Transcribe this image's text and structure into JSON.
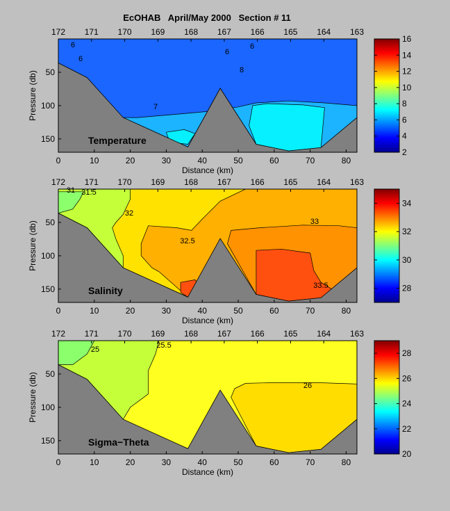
{
  "figure_title": "EcOHAB   April/May 2000   Section # 11",
  "chart_data": [
    {
      "type": "heatmap",
      "panel_label": "Temperature",
      "xlabel": "Distance (km)",
      "ylabel": "Pressure (db)",
      "xticks": [
        0,
        10,
        20,
        30,
        40,
        50,
        60,
        70,
        80
      ],
      "yticks": [
        50,
        100,
        150
      ],
      "station_ticks": [
        172,
        171,
        170,
        169,
        168,
        167,
        166,
        165,
        164,
        163
      ],
      "colorbar_ticks": [
        2,
        4,
        6,
        8,
        10,
        12,
        14,
        16
      ],
      "colorbar_range": [
        2,
        16
      ],
      "contour_labels": [
        "6",
        "6",
        "6",
        "6",
        "8",
        "7"
      ],
      "xlim": [
        0,
        83
      ],
      "ylim": [
        170,
        0
      ],
      "bottom_profile": [
        [
          0,
          36
        ],
        [
          8,
          58
        ],
        [
          18,
          118
        ],
        [
          36,
          162
        ],
        [
          45,
          74
        ],
        [
          55,
          158
        ],
        [
          64,
          168
        ],
        [
          73,
          163
        ],
        [
          83,
          118
        ]
      ],
      "fields": [
        {
          "value": 5.7,
          "color": "#1a66ff",
          "outline": [
            [
              0,
              0
            ],
            [
              83,
              0
            ],
            [
              83,
              118
            ],
            [
              73,
              163
            ],
            [
              64,
              168
            ],
            [
              55,
              158
            ],
            [
              45,
              74
            ],
            [
              36,
              162
            ],
            [
              18,
              118
            ],
            [
              8,
              58
            ],
            [
              0,
              36
            ]
          ]
        },
        {
          "value": 7.0,
          "color": "#1cb4ff",
          "outline": [
            [
              22,
              118
            ],
            [
              35,
              112
            ],
            [
              43,
              108
            ],
            [
              50,
              102
            ],
            [
              55,
              96
            ],
            [
              64,
              93
            ],
            [
              74,
              96
            ],
            [
              83,
              100
            ],
            [
              83,
              118
            ],
            [
              73,
              163
            ],
            [
              64,
              168
            ],
            [
              55,
              158
            ],
            [
              45,
              74
            ],
            [
              36,
              162
            ],
            [
              18,
              118
            ]
          ]
        },
        {
          "value": 7.4,
          "color": "#06f0ff",
          "outline": [
            [
              54,
              100
            ],
            [
              58,
              97
            ],
            [
              68,
              99
            ],
            [
              74,
              103
            ],
            [
              73,
              163
            ],
            [
              64,
              168
            ],
            [
              55,
              158
            ],
            [
              53,
              130
            ]
          ]
        },
        {
          "value": 7.4,
          "color": "#06f0ff",
          "outline": [
            [
              30,
              140
            ],
            [
              35,
              136
            ],
            [
              38,
              142
            ],
            [
              36,
              158
            ],
            [
              31,
              155
            ]
          ]
        }
      ]
    },
    {
      "type": "heatmap",
      "panel_label": "Salinity",
      "xlabel": "Distance (km)",
      "ylabel": "Pressure (db)",
      "xticks": [
        0,
        10,
        20,
        30,
        40,
        50,
        60,
        70,
        80
      ],
      "yticks": [
        50,
        100,
        150
      ],
      "station_ticks": [
        172,
        171,
        170,
        169,
        168,
        167,
        166,
        165,
        164,
        163
      ],
      "colorbar_ticks": [
        28,
        30,
        32,
        34
      ],
      "colorbar_range": [
        27,
        35
      ],
      "contour_labels": [
        "31",
        "31.5",
        "32",
        "32.5",
        "33",
        "33.5"
      ],
      "xlim": [
        0,
        83
      ],
      "ylim": [
        170,
        0
      ],
      "bottom_profile": [
        [
          0,
          36
        ],
        [
          8,
          58
        ],
        [
          18,
          118
        ],
        [
          36,
          162
        ],
        [
          45,
          74
        ],
        [
          55,
          158
        ],
        [
          64,
          168
        ],
        [
          73,
          163
        ],
        [
          83,
          118
        ]
      ],
      "fields": [
        {
          "value": 32.5,
          "color": "#ffb000",
          "outline": [
            [
              0,
              0
            ],
            [
              83,
              0
            ],
            [
              83,
              118
            ],
            [
              73,
              163
            ],
            [
              64,
              168
            ],
            [
              55,
              158
            ],
            [
              45,
              74
            ],
            [
              36,
              162
            ],
            [
              18,
              118
            ],
            [
              8,
              58
            ],
            [
              0,
              36
            ]
          ]
        },
        {
          "value": 32.0,
          "color": "#ffe200",
          "outline": [
            [
              0,
              0
            ],
            [
              52,
              0
            ],
            [
              45,
              18
            ],
            [
              40,
              45
            ],
            [
              37,
              62
            ],
            [
              33,
              58
            ],
            [
              25,
              55
            ],
            [
              23,
              82
            ],
            [
              23,
              100
            ],
            [
              26,
              118
            ],
            [
              28,
              124
            ],
            [
              36,
              162
            ],
            [
              18,
              118
            ],
            [
              8,
              58
            ],
            [
              0,
              36
            ]
          ]
        },
        {
          "value": 31.5,
          "color": "#c4ff3a",
          "outline": [
            [
              0,
              0
            ],
            [
              20,
              0
            ],
            [
              20,
              15
            ],
            [
              18,
              38
            ],
            [
              16,
              50
            ],
            [
              15,
              58
            ],
            [
              16,
              75
            ],
            [
              18,
              100
            ],
            [
              18,
              118
            ],
            [
              8,
              58
            ],
            [
              0,
              36
            ]
          ]
        },
        {
          "value": 31.0,
          "color": "#8cff6c",
          "outline": [
            [
              0,
              4
            ],
            [
              7,
              4
            ],
            [
              6,
              15
            ],
            [
              4,
              30
            ],
            [
              0,
              36
            ]
          ]
        },
        {
          "value": 33.0,
          "color": "#ff9200",
          "outline": [
            [
              48,
              62
            ],
            [
              56,
              58
            ],
            [
              68,
              54
            ],
            [
              78,
              55
            ],
            [
              83,
              58
            ],
            [
              83,
              118
            ],
            [
              73,
              163
            ],
            [
              64,
              168
            ],
            [
              55,
              158
            ],
            [
              47,
              82
            ]
          ]
        },
        {
          "value": 33.5,
          "color": "#ff5010",
          "outline": [
            [
              55,
              92
            ],
            [
              62,
              90
            ],
            [
              70,
              96
            ],
            [
              71,
              122
            ],
            [
              73,
              140
            ],
            [
              76,
              150
            ],
            [
              73,
              163
            ],
            [
              64,
              168
            ],
            [
              55,
              158
            ]
          ]
        },
        {
          "value": 33.5,
          "color": "#ff5010",
          "outline": [
            [
              34,
              140
            ],
            [
              38,
              136
            ],
            [
              40,
              150
            ],
            [
              36,
              162
            ],
            [
              34,
              155
            ]
          ]
        }
      ]
    },
    {
      "type": "heatmap",
      "panel_label": "Sigma−Theta",
      "xlabel": "Distance (km)",
      "ylabel": "Pressure (db)",
      "xticks": [
        0,
        10,
        20,
        30,
        40,
        50,
        60,
        70,
        80
      ],
      "yticks": [
        50,
        100,
        150
      ],
      "station_ticks": [
        172,
        171,
        170,
        169,
        168,
        167,
        166,
        165,
        164,
        163
      ],
      "colorbar_ticks": [
        20,
        22,
        24,
        26,
        28
      ],
      "colorbar_range": [
        20,
        29
      ],
      "contour_labels": [
        "25",
        "25.5",
        "26"
      ],
      "xlim": [
        0,
        83
      ],
      "ylim": [
        170,
        0
      ],
      "bottom_profile": [
        [
          0,
          36
        ],
        [
          8,
          58
        ],
        [
          18,
          118
        ],
        [
          36,
          162
        ],
        [
          45,
          74
        ],
        [
          55,
          158
        ],
        [
          64,
          168
        ],
        [
          73,
          163
        ],
        [
          83,
          118
        ]
      ],
      "fields": [
        {
          "value": 25.7,
          "color": "#ffff20",
          "outline": [
            [
              0,
              0
            ],
            [
              83,
              0
            ],
            [
              83,
              118
            ],
            [
              73,
              163
            ],
            [
              64,
              168
            ],
            [
              55,
              158
            ],
            [
              45,
              74
            ],
            [
              36,
              162
            ],
            [
              18,
              118
            ],
            [
              8,
              58
            ],
            [
              0,
              36
            ]
          ]
        },
        {
          "value": 25.3,
          "color": "#c4ff3a",
          "outline": [
            [
              0,
              0
            ],
            [
              28,
              0
            ],
            [
              27,
              20
            ],
            [
              25,
              45
            ],
            [
              25,
              80
            ],
            [
              20,
              100
            ],
            [
              18,
              118
            ],
            [
              8,
              58
            ],
            [
              0,
              36
            ]
          ]
        },
        {
          "value": 25.0,
          "color": "#8cff6c",
          "outline": [
            [
              0,
              0
            ],
            [
              10,
              0
            ],
            [
              8,
              20
            ],
            [
              4,
              36
            ],
            [
              0,
              36
            ]
          ]
        },
        {
          "value": 26.1,
          "color": "#ffdd00",
          "outline": [
            [
              49,
              72
            ],
            [
              52,
              64
            ],
            [
              60,
              63
            ],
            [
              72,
              63
            ],
            [
              83,
              65
            ],
            [
              83,
              118
            ],
            [
              73,
              163
            ],
            [
              64,
              168
            ],
            [
              55,
              158
            ],
            [
              48,
              85
            ]
          ]
        }
      ]
    }
  ]
}
